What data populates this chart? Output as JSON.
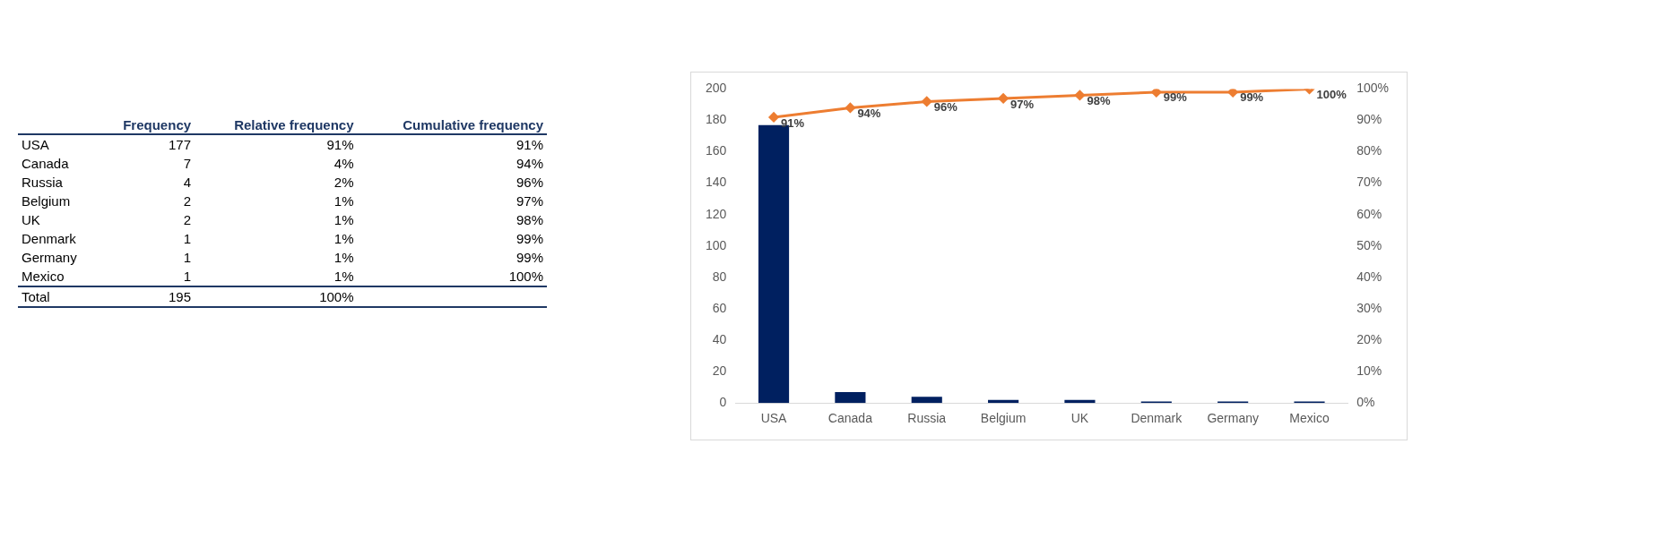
{
  "chart_data": [
    {
      "type": "other",
      "categories": [
        "USA",
        "Canada",
        "Russia",
        "Belgium",
        "UK",
        "Denmark",
        "Germany",
        "Mexico",
        "Total"
      ],
      "series": [
        {
          "name": "Frequency",
          "values": [
            177,
            7,
            4,
            2,
            2,
            1,
            1,
            1,
            195
          ]
        },
        {
          "name": "Relative frequency",
          "values": [
            91,
            4,
            2,
            1,
            1,
            1,
            1,
            1,
            100
          ],
          "value_labels": [
            "91%",
            "4%",
            "2%",
            "1%",
            "1%",
            "1%",
            "1%",
            "1%",
            "100%"
          ]
        },
        {
          "name": "Cumulative frequency",
          "values": [
            91,
            94,
            96,
            97,
            98,
            99,
            99,
            100,
            null
          ],
          "value_labels": [
            "91%",
            "94%",
            "96%",
            "97%",
            "98%",
            "99%",
            "99%",
            "100%",
            null
          ]
        }
      ],
      "color": "#1f3864",
      "data_labels": true
    },
    {
      "type": "bar",
      "categories": [
        "USA",
        "Canada",
        "Russia",
        "Belgium",
        "UK",
        "Denmark",
        "Germany",
        "Mexico"
      ],
      "series": [
        {
          "type": "bar",
          "color": "#002060",
          "values": [
            177,
            7,
            4,
            2,
            2,
            1,
            1,
            1
          ]
        },
        {
          "type": "line",
          "axis": "y2",
          "color": "#ed7d31",
          "marker": "diamond",
          "values": [
            91,
            94,
            96,
            97,
            98,
            99,
            99,
            100
          ],
          "value_labels": [
            "91%",
            "94%",
            "96%",
            "97%",
            "98%",
            "99%",
            "99%",
            "100%"
          ]
        }
      ],
      "ylim": [
        0,
        200
      ],
      "yticks": [
        0,
        20,
        40,
        60,
        80,
        100,
        120,
        140,
        160,
        180,
        200
      ],
      "y2lim": [
        0,
        100
      ],
      "y2ticks": [
        {
          "value": 0,
          "label": "0%"
        },
        {
          "value": 10,
          "label": "10%"
        },
        {
          "value": 20,
          "label": "20%"
        },
        {
          "value": 30,
          "label": "30%"
        },
        {
          "value": 40,
          "label": "40%"
        },
        {
          "value": 50,
          "label": "50%"
        },
        {
          "value": 60,
          "label": "60%"
        },
        {
          "value": 70,
          "label": "70%"
        },
        {
          "value": 80,
          "label": "80%"
        },
        {
          "value": 90,
          "label": "90%"
        },
        {
          "value": 100,
          "label": "100%"
        }
      ],
      "grid": false,
      "legend": false
    }
  ]
}
